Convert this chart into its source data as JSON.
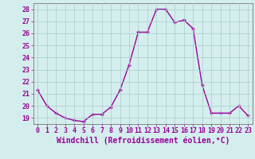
{
  "x": [
    0,
    1,
    2,
    3,
    4,
    5,
    6,
    7,
    8,
    9,
    10,
    11,
    12,
    13,
    14,
    15,
    16,
    17,
    18,
    19,
    20,
    21,
    22,
    23
  ],
  "y": [
    21.3,
    20.0,
    19.4,
    19.0,
    18.8,
    18.7,
    19.3,
    19.3,
    19.9,
    21.3,
    23.4,
    26.1,
    26.1,
    28.0,
    28.0,
    26.9,
    27.1,
    26.4,
    21.7,
    19.4,
    19.4,
    19.4,
    20.0,
    19.2
  ],
  "line_color": "#990099",
  "marker": "+",
  "marker_size": 3,
  "xlabel": "Windchill (Refroidissement éolien,°C)",
  "xlabel_fontsize": 7,
  "ylim": [
    18.5,
    28.5
  ],
  "yticks": [
    19,
    20,
    21,
    22,
    23,
    24,
    25,
    26,
    27,
    28
  ],
  "xticks": [
    0,
    1,
    2,
    3,
    4,
    5,
    6,
    7,
    8,
    9,
    10,
    11,
    12,
    13,
    14,
    15,
    16,
    17,
    18,
    19,
    20,
    21,
    22,
    23
  ],
  "bg_color": "#d4eeed",
  "grid_color": "#aacccc",
  "tick_label_color": "#990099",
  "axis_color": "#777777",
  "tick_fontsize": 6,
  "line_width": 1.0
}
